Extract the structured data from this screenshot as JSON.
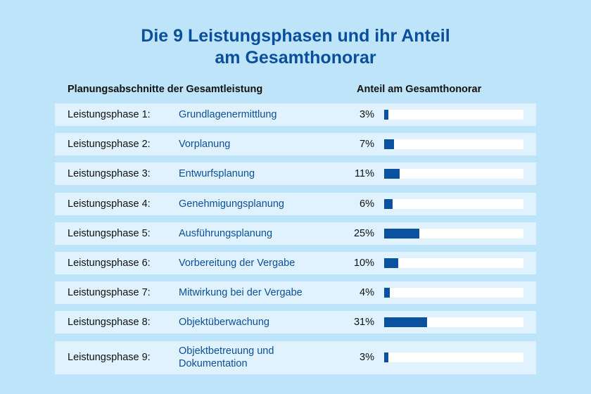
{
  "title_line1": "Die 9 Leistungsphasen und ihr Anteil",
  "title_line2": "am Gesamthonorar",
  "headers": {
    "left": "Planungsabschnitte der Gesamtleistung",
    "right": "Anteil am Gesamthonorar"
  },
  "colors": {
    "background": "#bee4fa",
    "row": "#dff2fd",
    "accent": "#0b4f9c",
    "bar": "#0a52a0",
    "track": "#ffffff"
  },
  "chart_data": {
    "type": "bar",
    "orientation": "horizontal",
    "xlim": [
      0,
      100
    ],
    "unit": "%",
    "rows": [
      {
        "phase": "Leistungsphase 1:",
        "name": "Grundlagenermittlung",
        "value": 3,
        "label": "3%"
      },
      {
        "phase": "Leistungsphase 2:",
        "name": "Vorplanung",
        "value": 7,
        "label": "7%"
      },
      {
        "phase": "Leistungsphase 3:",
        "name": "Entwurfsplanung",
        "value": 11,
        "label": "11%"
      },
      {
        "phase": "Leistungsphase 4:",
        "name": "Genehmigungsplanung",
        "value": 6,
        "label": "6%"
      },
      {
        "phase": "Leistungsphase 5:",
        "name": "Ausführungsplanung",
        "value": 25,
        "label": "25%"
      },
      {
        "phase": "Leistungsphase 6:",
        "name": "Vorbereitung der Vergabe",
        "value": 10,
        "label": "10%"
      },
      {
        "phase": "Leistungsphase 7:",
        "name": "Mitwirkung bei der Vergabe",
        "value": 4,
        "label": "4%"
      },
      {
        "phase": "Leistungsphase 8:",
        "name": "Objektüberwachung",
        "value": 31,
        "label": "31%"
      },
      {
        "phase": "Leistungsphase 9:",
        "name": "Objektbetreuung und Dokumentation",
        "value": 3,
        "label": "3%"
      }
    ]
  }
}
